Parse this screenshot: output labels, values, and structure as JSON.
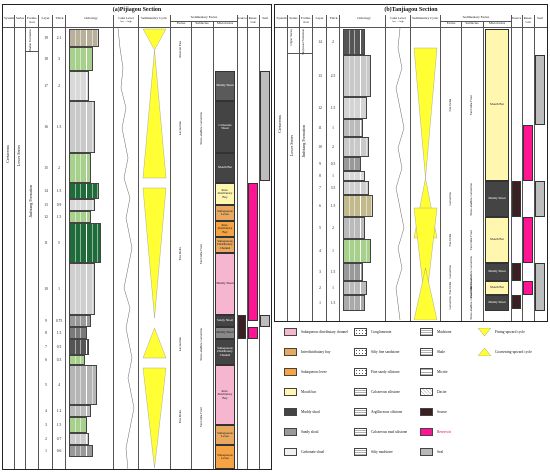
{
  "panel_a": {
    "title": "(a)Pijiagou Section",
    "headers": {
      "system": "System",
      "series": "Series",
      "formation": "Forma-tion",
      "layer": "Layer",
      "thick": "Thick",
      "lithology": "Lithology",
      "lake_level": "Lake Level",
      "lake_sub": "low — high",
      "cycle": "Sedimentary Cycle",
      "facies_group": "Sedimentary Facies",
      "facies": "Facies",
      "subfacies": "Subfacies",
      "microfacies": "Microfacies",
      "source": "Source",
      "reservoir": "Reser-voir",
      "seal": "Seal"
    },
    "system_value": "Cretaceous",
    "series_value": "Lower Series",
    "formation_value": "Jiufotang Formation",
    "top_formation": "Shahai Formation",
    "layers": [
      {
        "layer": "19",
        "thick": "2.1"
      },
      {
        "layer": "18",
        "thick": "3"
      },
      {
        "layer": "17",
        "thick": "2"
      },
      {
        "layer": "16",
        "thick": "1.5"
      },
      {
        "layer": "15",
        "thick": "2"
      },
      {
        "layer": "14",
        "thick": "1.5"
      },
      {
        "layer": "13",
        "thick": "0.9"
      },
      {
        "layer": "12",
        "thick": "1.5"
      },
      {
        "layer": "11",
        "thick": "5"
      },
      {
        "layer": "10",
        "thick": "1"
      },
      {
        "layer": "9",
        "thick": "0.75"
      },
      {
        "layer": "8",
        "thick": "1.5"
      },
      {
        "layer": "7",
        "thick": "0.5"
      },
      {
        "layer": "6",
        "thick": "0.3"
      },
      {
        "layer": "5",
        "thick": "4"
      },
      {
        "layer": "4",
        "thick": "1.2"
      },
      {
        "layer": "3",
        "thick": "1.5"
      },
      {
        "layer": "2",
        "thick": "0.7"
      },
      {
        "layer": "1",
        "thick": "0.6"
      }
    ],
    "facies": [
      "Alluvial Fan",
      "Lacustrine",
      "Fan Delta",
      "Lacustrine",
      "Fan Delta"
    ],
    "subfacies": [
      "Shore-shallow Lacustrine",
      "Fan Delta Front",
      "Shore-shallow Lacustrine",
      "Fan Delta Front"
    ],
    "microfacies": [
      "Muddy Shoal",
      "Carbonate Shoal",
      "Mouth Bar",
      "Inter-distributary Bay",
      "Subaqueous Levee",
      "Inter-distributary Bay",
      "Subaqueous Distributary Channel",
      "Muddy Shoal",
      "Sandy Shoal",
      "Muddy Shoal",
      "Subaqueous Distributary Channel",
      "Inter-distributary Bay",
      "Subaqueous Levee"
    ]
  },
  "panel_b": {
    "title": "(b)Tanjiagou Section",
    "headers": {
      "system": "System",
      "series": "Series",
      "formation": "Forma-tion",
      "layer": "Layer",
      "thick": "Thick",
      "lithology": "Lithology",
      "lake_level": "Lake Level",
      "lake_sub": "low — high",
      "cycle": "Sedimentary Cycle",
      "facies_group": "Sedimentary Facies",
      "facies": "Facies",
      "subfacies": "Subfacies",
      "microfacies": "Microfacies",
      "source": "Source",
      "reservoir": "Reser-voir",
      "seal": "Seal"
    },
    "system_value": "Cretaceous",
    "series_value": "Lower Series",
    "formation_value": "Jiufotang Formation",
    "top_series": "Upper Series",
    "top_formation": "Sunjiawan Formation",
    "layers": [
      {
        "layer": "14",
        "thick": "2"
      },
      {
        "layer": "13",
        "thick": "2.5"
      },
      {
        "layer": "12",
        "thick": "1.5"
      },
      {
        "layer": "11",
        "thick": "1"
      },
      {
        "layer": "10",
        "thick": "2"
      },
      {
        "layer": "9",
        "thick": "0.5"
      },
      {
        "layer": "8",
        "thick": "1"
      },
      {
        "layer": "7",
        "thick": "3.5"
      },
      {
        "layer": "6",
        "thick": "1.5"
      },
      {
        "layer": "5",
        "thick": "2"
      },
      {
        "layer": "4",
        "thick": "1"
      },
      {
        "layer": "3",
        "thick": "1.5"
      },
      {
        "layer": "2",
        "thick": "1"
      },
      {
        "layer": "1",
        "thick": "1.5"
      }
    ],
    "facies": [
      "Fan Delta",
      "Lacustrine",
      "Fan Delta",
      "Lacustrine",
      "Fan Delta",
      "Lacustrine"
    ],
    "subfacies": [
      "Fan Delta Front",
      "Shore-shallow Lacustrine",
      "Fan Delta Front",
      "Shore-shallow Lacustrine",
      "Fan Delta Front",
      "Shore-shallow Lacustrine"
    ],
    "microfacies": [
      "Mouth Bar",
      "Muddy Shoal",
      "Mouth Bar",
      "Muddy Shoal",
      "Mouth Bar",
      "Muddy Shoal"
    ]
  },
  "legend": [
    {
      "label": "Subaqueous distributary channel",
      "color": "#f6b6cf"
    },
    {
      "label": "Conglomerate",
      "pattern": "dots"
    },
    {
      "label": "Mudstone",
      "pattern": "dash"
    },
    {
      "label": "Fining-upward cycle",
      "color": "#ffff33",
      "shape": "tri-down"
    },
    {
      "label": "Interdistributary bay",
      "color": "#e8a860"
    },
    {
      "label": "Silty fine sandstone",
      "pattern": "dots"
    },
    {
      "label": "Shale",
      "pattern": "dash"
    },
    {
      "label": "Coarsening-upward cycle",
      "color": "#ffff33",
      "shape": "tri-up"
    },
    {
      "label": "Subaqueous levee",
      "color": "#f5a445"
    },
    {
      "label": "Fine sandy siltstone",
      "pattern": "dots"
    },
    {
      "label": "Micrite",
      "pattern": "brick"
    },
    {
      "label": "Mouth bar",
      "color": "#fff6b0"
    },
    {
      "label": "Calcareous siltstone",
      "pattern": "dash"
    },
    {
      "label": "Dacite",
      "pattern": "cross"
    },
    {
      "label": "Muddy shoal",
      "color": "#444444"
    },
    {
      "label": "Argillaceous siltstone",
      "pattern": "dash"
    },
    {
      "label": "Source",
      "color": "#3a2020"
    },
    {
      "label": "Sandy shoal",
      "color": "#999999"
    },
    {
      "label": "Calcareous mud siltstone",
      "pattern": "dash"
    },
    {
      "label": "Reservoir",
      "color": "#ff1493",
      "label_color": "#e0006a"
    },
    {
      "label": "Carbonate shoal",
      "color": "#f0f0f0"
    },
    {
      "label": "Silty mudstone",
      "pattern": "dash"
    },
    {
      "label": "Seal",
      "color": "#b8b8b8"
    }
  ],
  "colors": {
    "cycle": "#ffff33",
    "reservoir": "#ff1493",
    "source": "#3a2020",
    "seal": "#bdbdbd",
    "green": "#1f6b3a",
    "lime": "#a8d08d",
    "gray": "#9a9a9a"
  }
}
